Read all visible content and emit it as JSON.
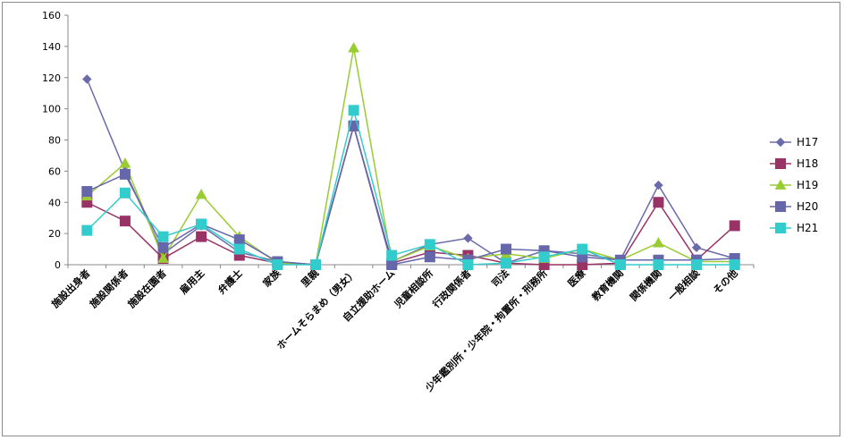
{
  "chart_data": {
    "type": "line",
    "categories": [
      "施設出身者",
      "施設関係者",
      "施設在園者",
      "雇用主",
      "弁護士",
      "家族",
      "里親",
      "ホームそらまめ（男女）",
      "自立援助ホーム",
      "児童相談所",
      "行政関係者",
      "司法",
      "少年鑑別所・少年院・拘置所・刑務所",
      "医療",
      "教育機関",
      "関係機関",
      "一般相談",
      "その他"
    ],
    "ylim": [
      0,
      160
    ],
    "yticks": [
      0,
      20,
      40,
      60,
      80,
      100,
      120,
      140,
      160
    ],
    "grid": false,
    "legend_position": "right",
    "series": [
      {
        "name": "H17",
        "color": "#6b6baa",
        "marker": "diamond",
        "values": [
          119,
          60,
          7,
          25,
          8,
          2,
          0,
          89,
          2,
          13,
          17,
          1,
          9,
          7,
          3,
          51,
          11,
          4
        ]
      },
      {
        "name": "H18",
        "color": "#993366",
        "marker": "square",
        "values": [
          40,
          28,
          4,
          18,
          6,
          1,
          0,
          89,
          1,
          8,
          6,
          1,
          0,
          0,
          1,
          40,
          3,
          25
        ]
      },
      {
        "name": "H19",
        "color": "#99cc33",
        "marker": "triangle",
        "values": [
          44,
          65,
          4,
          45,
          18,
          1,
          0,
          139,
          2,
          12,
          4,
          7,
          4,
          10,
          3,
          14,
          2,
          2
        ]
      },
      {
        "name": "H20",
        "color": "#6666aa",
        "marker": "square",
        "values": [
          47,
          58,
          11,
          26,
          16,
          2,
          0,
          89,
          0,
          5,
          3,
          10,
          9,
          5,
          3,
          3,
          3,
          4
        ]
      },
      {
        "name": "H21",
        "color": "#33cccc",
        "marker": "square",
        "values": [
          22,
          46,
          18,
          26,
          10,
          0,
          0,
          99,
          6,
          13,
          0,
          1,
          5,
          10,
          0,
          0,
          0,
          0
        ]
      }
    ]
  }
}
